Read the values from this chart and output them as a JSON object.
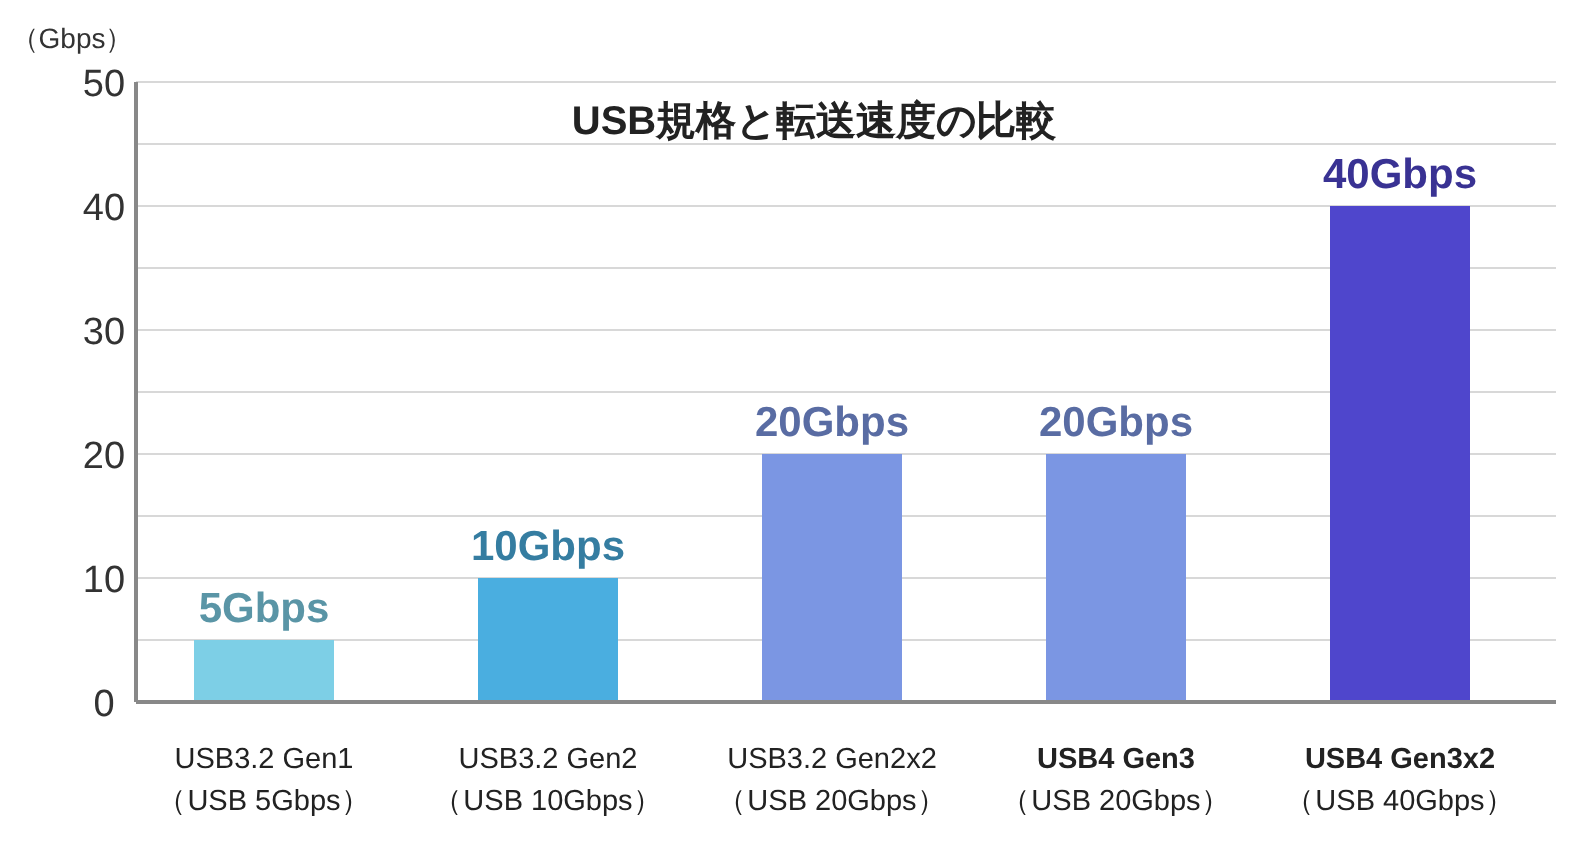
{
  "chart_data": {
    "type": "bar",
    "title": "USB規格と転送速度の比較",
    "ylabel": "（Gbps）",
    "categories": [
      "USB3.2 Gen1\n（USB 5Gbps）",
      "USB3.2 Gen2\n（USB 10Gbps）",
      "USB3.2 Gen2x2\n（USB 20Gbps）",
      "**USB4 Gen3**\n（USB 20Gbps）",
      "**USB4 Gen3x2**\n（USB 40Gbps）"
    ],
    "values": [
      5,
      10,
      20,
      20,
      40
    ],
    "colors": [
      "#7dcfe6",
      "#4aaee0",
      "#7b96e3",
      "#7b96e3",
      "#4f46cc"
    ],
    "value_labels": [
      "5Gbps",
      "10Gbps",
      "20Gbps",
      "20Gbps",
      "40Gbps"
    ],
    "ylim": [
      0,
      50
    ],
    "yticks": [
      0,
      {
        "value": 5,
        "label": null
      },
      10,
      {
        "value": 15,
        "label": null
      },
      20,
      {
        "value": 25,
        "label": null
      },
      30,
      {
        "value": 35,
        "label": null
      },
      40,
      {
        "value": 45,
        "label": null
      },
      50
    ],
    "grid": "y"
  }
}
